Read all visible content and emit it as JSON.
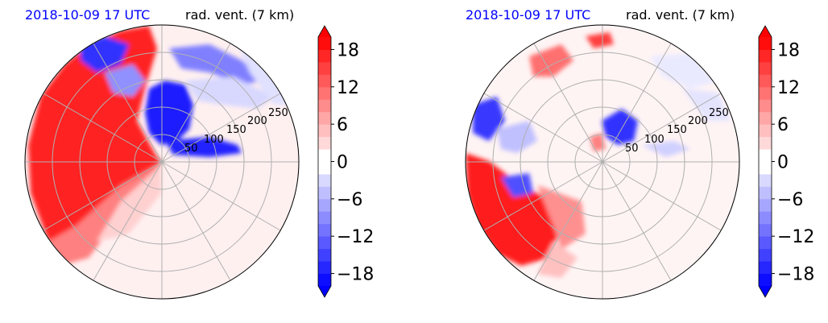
{
  "colors": {
    "title_time": "#0000ff",
    "title_var": "#000000",
    "strong_positive": "#ff0000",
    "strong_negative": "#0000ff",
    "zero": "#ffffff",
    "grid": "#b0b0b0"
  },
  "panels": [
    {
      "time_label": "2018-10-09 17 UTC",
      "var_label": "rad. vent. (7 km)",
      "range_labels": [
        "50",
        "100",
        "150",
        "200",
        "250"
      ]
    },
    {
      "time_label": "2018-10-09 17 UTC",
      "var_label": "rad. vent. (7 km)",
      "range_labels": [
        "50",
        "100",
        "150",
        "200",
        "250"
      ]
    }
  ],
  "chart_data": [
    {
      "type": "heatmap",
      "title": "",
      "projection": "polar (radar PPI)",
      "range_ticks": [
        50,
        100,
        150,
        200,
        250
      ],
      "azimuth_spokes_deg": [
        0,
        30,
        60,
        90,
        120,
        150,
        180,
        210,
        240,
        270,
        300,
        330
      ],
      "colorbar": {
        "ticks": [
          -18,
          -12,
          -6,
          0,
          6,
          12,
          18
        ],
        "tick_labels": [
          "−18",
          "−12",
          "−6",
          "0",
          "6",
          "12",
          "18"
        ],
        "vmin": -20,
        "vmax": 20,
        "extend": "both",
        "cmap": "bwr (blue-white-red)"
      }
    },
    {
      "type": "heatmap",
      "title": "",
      "projection": "polar (radar PPI)",
      "range_ticks": [
        50,
        100,
        150,
        200,
        250
      ],
      "azimuth_spokes_deg": [
        0,
        30,
        60,
        90,
        120,
        150,
        180,
        210,
        240,
        270,
        300,
        330
      ],
      "colorbar": {
        "ticks": [
          -18,
          -12,
          -6,
          0,
          6,
          12,
          18
        ],
        "tick_labels": [
          "−18",
          "−12",
          "−6",
          "0",
          "6",
          "12",
          "18"
        ],
        "vmin": -20,
        "vmax": 20,
        "extend": "both",
        "cmap": "bwr (blue-white-red)"
      }
    }
  ]
}
